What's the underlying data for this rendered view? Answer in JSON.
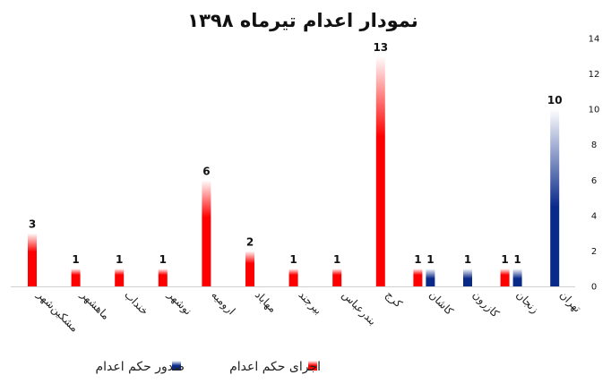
{
  "chart_data": {
    "type": "bar",
    "title": "نمودار اعدام تیرماه ۱۳۹۸",
    "xlabel": "",
    "ylabel": "",
    "ylim": [
      0,
      14
    ],
    "ytick_step": 2,
    "y_axis_position": "right",
    "grid": false,
    "legend_position": "bottom",
    "categories": [
      "مشکین‌شهر",
      "ماهشهر",
      "خنداب",
      "نوشهر",
      "ارومیه",
      "مهاباد",
      "بیرجند",
      "بندرعباس",
      "کرج",
      "کاشان",
      "کازرون",
      "زنجان",
      "تهران"
    ],
    "series": [
      {
        "name": "اجرای حکم اعدام",
        "color": "#ff0000",
        "values": [
          3,
          1,
          1,
          1,
          6,
          2,
          1,
          1,
          13,
          1,
          null,
          1,
          null
        ]
      },
      {
        "name": "صدور حکم اعدام",
        "color": "#0a2a8a",
        "values": [
          null,
          null,
          null,
          null,
          null,
          null,
          null,
          null,
          null,
          1,
          1,
          1,
          10
        ]
      }
    ],
    "data_labels": true
  }
}
